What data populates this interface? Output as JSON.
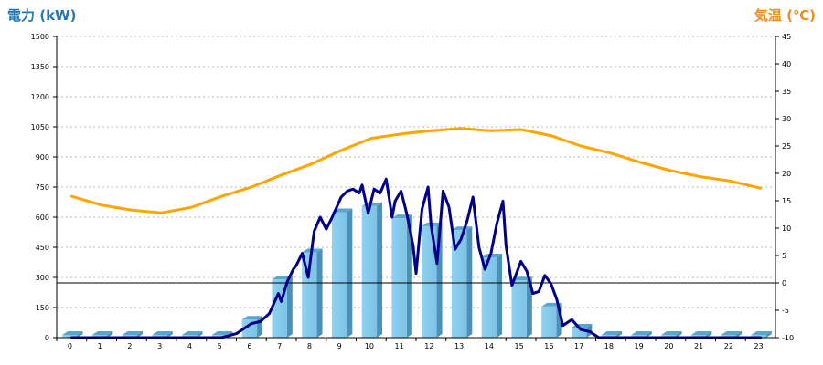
{
  "chart_data": {
    "type": "bar",
    "ylabel_left": "電力 (kW)",
    "ylabel_right": "気温 (℃)",
    "categories": [
      "0",
      "1",
      "2",
      "3",
      "4",
      "5",
      "6",
      "7",
      "8",
      "9",
      "10",
      "11",
      "12",
      "13",
      "14",
      "15",
      "16",
      "17",
      "18",
      "19",
      "20",
      "21",
      "22",
      "23"
    ],
    "y_left": {
      "min": 0,
      "max": 1500,
      "ticks": [
        0,
        150,
        300,
        450,
        600,
        750,
        900,
        1050,
        1200,
        1350,
        1500
      ]
    },
    "y_right": {
      "min": -10,
      "max": 45,
      "ticks": [
        -10,
        -5,
        0,
        5,
        10,
        15,
        20,
        25,
        30,
        35,
        40,
        45
      ]
    },
    "grid": true,
    "series": [
      {
        "kind": "bar",
        "axis": "left",
        "color": "#87ceeb",
        "values": [
          0,
          0,
          0,
          0,
          0,
          10,
          90,
          290,
          425,
          625,
          655,
          595,
          555,
          535,
          400,
          285,
          155,
          50,
          5,
          0,
          0,
          0,
          0,
          0
        ]
      },
      {
        "kind": "line",
        "axis": "left",
        "color": "#00008b",
        "x": [
          0,
          1,
          2,
          3,
          4,
          5,
          5.5,
          6,
          6.3,
          6.6,
          6.9,
          7,
          7.2,
          7.4,
          7.5,
          7.7,
          7.9,
          8,
          8.1,
          8.3,
          8.5,
          8.7,
          9,
          9.2,
          9.4,
          9.6,
          9.7,
          9.9,
          10.1,
          10.3,
          10.5,
          10.7,
          10.8,
          11,
          11.2,
          11.4,
          11.5,
          11.7,
          11.9,
          12,
          12.2,
          12.4,
          12.6,
          12.8,
          13,
          13.2,
          13.4,
          13.6,
          13.8,
          14,
          14.2,
          14.4,
          14.5,
          14.7,
          14.9,
          15,
          15.2,
          15.4,
          15.6,
          15.8,
          16,
          16.2,
          16.4,
          16.7,
          17,
          17.3,
          17.6,
          18,
          19,
          20,
          21,
          22,
          23
        ],
        "values": [
          0,
          0,
          0,
          0,
          0,
          0,
          20,
          70,
          80,
          120,
          220,
          180,
          280,
          340,
          360,
          420,
          300,
          420,
          530,
          600,
          540,
          600,
          700,
          730,
          740,
          720,
          760,
          620,
          740,
          720,
          790,
          600,
          680,
          730,
          610,
          460,
          320,
          640,
          750,
          560,
          370,
          730,
          650,
          440,
          490,
          580,
          700,
          450,
          340,
          420,
          570,
          680,
          460,
          260,
          340,
          380,
          330,
          220,
          230,
          310,
          270,
          190,
          60,
          90,
          40,
          30,
          0,
          0,
          0,
          0,
          0,
          0,
          0
        ]
      },
      {
        "kind": "line",
        "axis": "right",
        "color": "#ffa500",
        "values": [
          15.8,
          14.2,
          13.3,
          12.8,
          13.8,
          15.8,
          17.5,
          19.7,
          21.7,
          24.2,
          26.4,
          27.2,
          27.8,
          28.2,
          27.8,
          28.0,
          26.9,
          25.0,
          23.7,
          22.0,
          20.5,
          19.4,
          18.6,
          17.3
        ]
      }
    ]
  }
}
